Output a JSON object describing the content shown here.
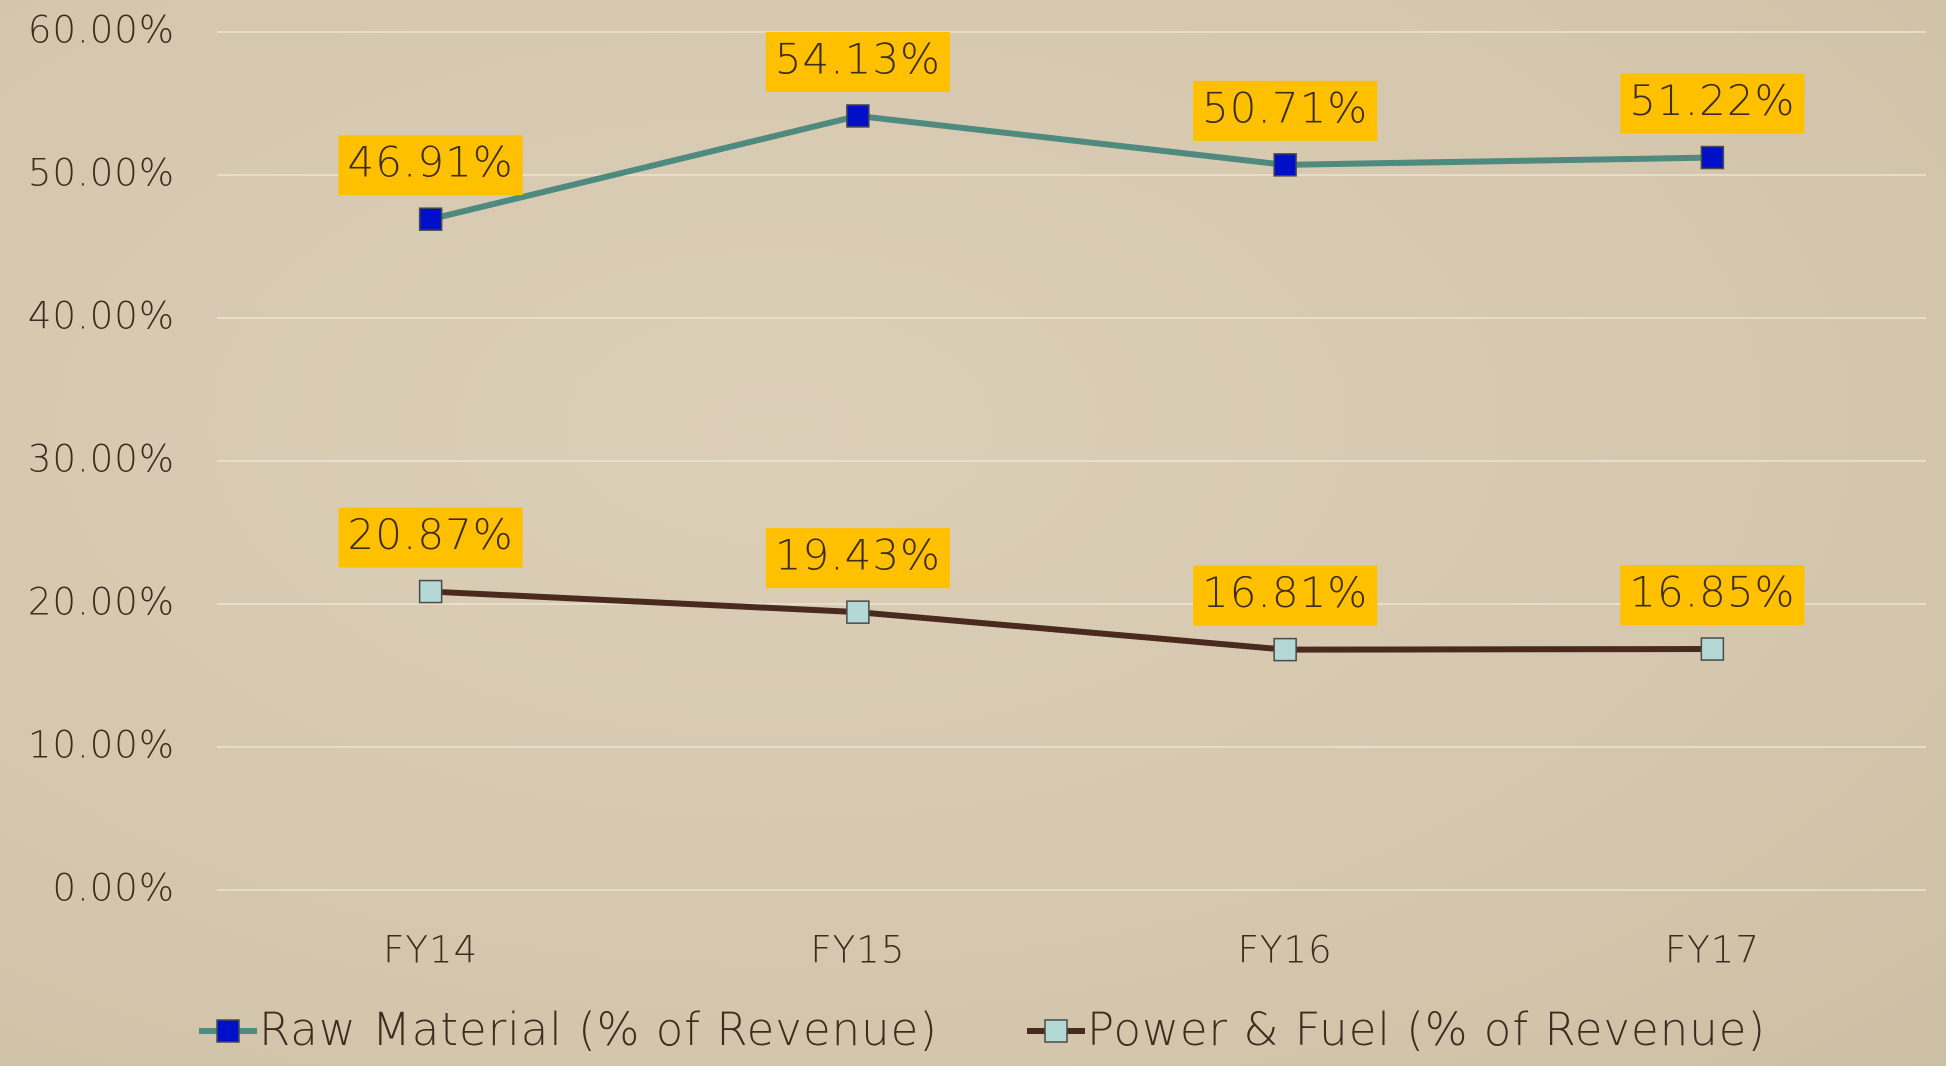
{
  "chart_data": {
    "type": "line",
    "categories": [
      "FY14",
      "FY15",
      "FY16",
      "FY17"
    ],
    "series": [
      {
        "name": "Raw Material (% of Revenue)",
        "color": "#4e8a7e",
        "marker_color": "#0010c8",
        "values": [
          46.91,
          54.13,
          50.71,
          51.22
        ],
        "value_labels": [
          "46.91%",
          "54.13%",
          "50.71%",
          "51.22%"
        ]
      },
      {
        "name": "Power & Fuel (% of Revenue)",
        "color": "#4a2a1e",
        "marker_color": "#b4d8d6",
        "values": [
          20.87,
          19.43,
          16.81,
          16.85
        ],
        "value_labels": [
          "20.87%",
          "19.43%",
          "16.81%",
          "16.85%"
        ]
      }
    ],
    "ylim": [
      0,
      60
    ],
    "yticks": [
      {
        "value": 0,
        "label": "0.00%"
      },
      {
        "value": 10,
        "label": "10.00%"
      },
      {
        "value": 20,
        "label": "20.00%"
      },
      {
        "value": 30,
        "label": "30.00%"
      },
      {
        "value": 40,
        "label": "40.00%"
      },
      {
        "value": 50,
        "label": "50.00%"
      },
      {
        "value": 60,
        "label": "60.00%"
      }
    ],
    "grid": true,
    "label_box_color": "#ffc000"
  }
}
